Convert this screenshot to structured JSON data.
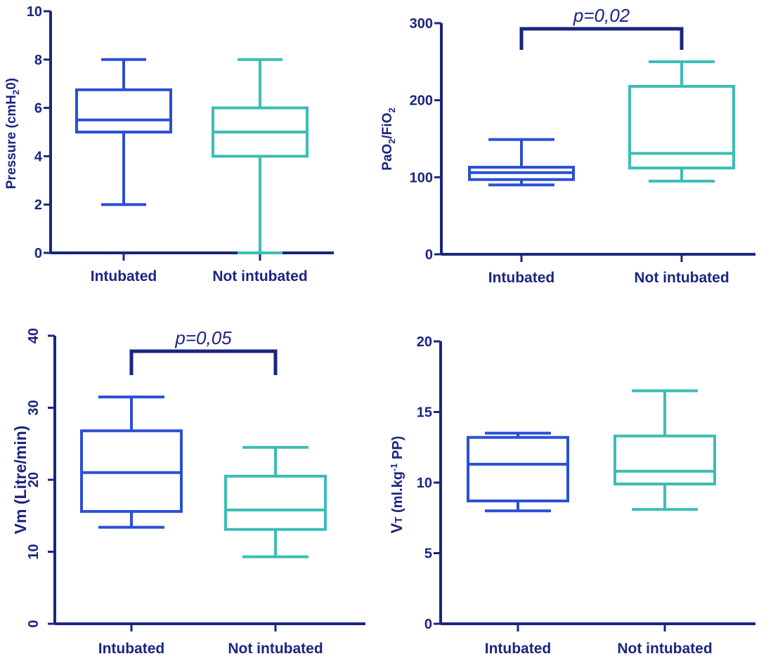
{
  "colors": {
    "axis": "#1a2580",
    "intubated": "#2a4fd6",
    "not_intubated": "#3bbdb6",
    "bracket": "#1a2580"
  },
  "chart_data": [
    {
      "type": "box",
      "categories": [
        "Intubated",
        "Not intubated"
      ],
      "ylabel": "Pressure (cmH20)",
      "ylabel_parts": {
        "main": "Pressure (cmH",
        "sub": "2",
        "tail": "0)"
      },
      "ylim": [
        0,
        10
      ],
      "yticks": [
        0,
        2,
        4,
        6,
        8,
        10
      ],
      "boxes": [
        {
          "name": "Intubated",
          "min": 2,
          "q1": 5,
          "median": 5.5,
          "q3": 6.75,
          "max": 8
        },
        {
          "name": "Not intubated",
          "min": 0,
          "q1": 4,
          "median": 5,
          "q3": 6,
          "max": 8
        }
      ],
      "annotation": null
    },
    {
      "type": "box",
      "categories": [
        "Intubated",
        "Not intubated"
      ],
      "ylabel": "PaO2/FiO2",
      "ylabel_parts": {
        "a": "PaO",
        "a_sub": "2",
        "b": "/FiO",
        "b_sub": "2"
      },
      "ylim": [
        0,
        300
      ],
      "yticks": [
        0,
        100,
        200,
        300
      ],
      "boxes": [
        {
          "name": "Intubated",
          "min": 90,
          "q1": 97,
          "median": 106,
          "q3": 113,
          "max": 149
        },
        {
          "name": "Not intubated",
          "min": 95,
          "q1": 112,
          "median": 131,
          "q3": 218,
          "max": 250
        }
      ],
      "annotation": {
        "text": "p=0,02",
        "between": [
          0,
          1
        ]
      }
    },
    {
      "type": "box",
      "categories": [
        "Intubated",
        "Not intubated"
      ],
      "ylabel": "Vm (Litre/min)",
      "ylim": [
        0,
        40
      ],
      "yticks": [
        0,
        10,
        20,
        30,
        40
      ],
      "boxes": [
        {
          "name": "Intubated",
          "min": 13.4,
          "q1": 15.6,
          "median": 21,
          "q3": 26.8,
          "max": 31.5
        },
        {
          "name": "Not intubated",
          "min": 9.3,
          "q1": 13.1,
          "median": 15.8,
          "q3": 20.5,
          "max": 24.5
        }
      ],
      "annotation": {
        "text": "p=0,05",
        "between": [
          0,
          1
        ]
      }
    },
    {
      "type": "box",
      "categories": [
        "Intubated",
        "Not intubated"
      ],
      "ylabel": "VT (ml.kg-1 PP)",
      "ylabel_parts": {
        "v": "V",
        "t": "T",
        "mid": " (ml.kg",
        "sup": "-1",
        "tail": " PP)"
      },
      "ylim": [
        0,
        20
      ],
      "yticks": [
        0,
        5,
        10,
        15,
        20
      ],
      "boxes": [
        {
          "name": "Intubated",
          "min": 8,
          "q1": 8.7,
          "median": 11.3,
          "q3": 13.2,
          "max": 13.5
        },
        {
          "name": "Not intubated",
          "min": 8.1,
          "q1": 9.9,
          "median": 10.8,
          "q3": 13.3,
          "max": 16.5
        }
      ],
      "annotation": null
    }
  ]
}
